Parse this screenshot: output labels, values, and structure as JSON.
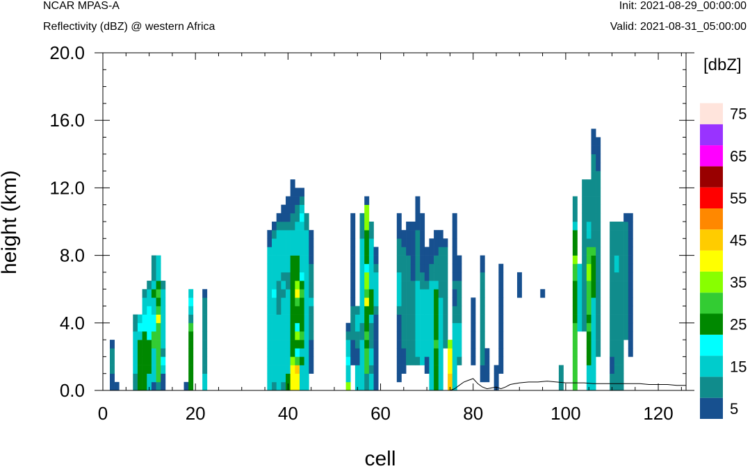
{
  "header": {
    "left_title": "NCAR MPAS-A",
    "left_subtitle": "Reflectivity (dBZ) @ western Africa",
    "init": "Init: 2021-08-29_00:00:00",
    "valid": "Valid: 2021-08-31_05:00:00"
  },
  "chart_data": {
    "type": "heatmap",
    "xlabel": "cell",
    "ylabel": "height (km)",
    "xlim": [
      0,
      126
    ],
    "ylim": [
      0,
      20
    ],
    "xticks": [
      "0",
      "20",
      "40",
      "60",
      "80",
      "100",
      "120"
    ],
    "yticks": [
      "0.0",
      "4.0",
      "8.0",
      "12.0",
      "16.0",
      "20.0"
    ],
    "colorbar": {
      "units": "[dbZ]",
      "levels": [
        5,
        10,
        15,
        20,
        25,
        30,
        35,
        40,
        45,
        50,
        55,
        60,
        65,
        70,
        75
      ],
      "labels": [
        "5",
        "15",
        "25",
        "35",
        "45",
        "55",
        "65",
        "75"
      ],
      "colors": [
        "#17508f",
        "#108c8c",
        "#00cccc",
        "#00ffff",
        "#008800",
        "#33cc33",
        "#88ff00",
        "#ffff00",
        "#ffcc00",
        "#ff8800",
        "#ff0000",
        "#990000",
        "#ff00ff",
        "#9933ff",
        "#ffe4dc"
      ]
    },
    "cell_height_km": 0.5,
    "columns": [
      {
        "x": 2,
        "y0": 0,
        "classes": [
          0,
          0,
          1,
          1,
          1,
          0
        ]
      },
      {
        "x": 3,
        "y0": 0,
        "classes": [
          0
        ]
      },
      {
        "x": 7,
        "y0": 0,
        "classes": [
          1,
          1,
          2,
          2,
          2,
          2,
          2,
          1,
          1
        ]
      },
      {
        "x": 8,
        "y0": 0,
        "classes": [
          4,
          4,
          4,
          4,
          4,
          4,
          2,
          3,
          2
        ]
      },
      {
        "x": 9,
        "y0": 0,
        "classes": [
          4,
          4,
          4,
          4,
          4,
          4,
          4,
          3,
          3,
          2,
          2,
          1
        ]
      },
      {
        "x": 10,
        "y0": 0,
        "classes": [
          2,
          2,
          4,
          4,
          4,
          4,
          3,
          3,
          3,
          3,
          2,
          2,
          1
        ]
      },
      {
        "x": 11,
        "y0": 0,
        "classes": [
          0,
          2,
          2,
          2,
          2,
          5,
          5,
          3,
          3,
          2,
          2,
          4,
          2,
          1,
          1,
          1
        ]
      },
      {
        "x": 12,
        "y0": 0,
        "classes": [
          1,
          5,
          5,
          5,
          5,
          5,
          5,
          5,
          7,
          5,
          4,
          5,
          4,
          2,
          2,
          2
        ]
      },
      {
        "x": 13,
        "y0": 0,
        "classes": [
          0,
          0,
          2,
          3,
          1,
          2,
          2,
          2,
          2,
          2,
          2,
          2,
          1
        ]
      },
      {
        "x": 18,
        "y0": 0,
        "classes": [
          0
        ]
      },
      {
        "x": 19,
        "y0": 0,
        "classes": [
          4,
          4,
          4,
          4,
          4,
          4,
          4,
          5,
          1,
          2,
          3,
          2
        ]
      },
      {
        "x": 22,
        "y0": 0,
        "classes": [
          2,
          2,
          1,
          1,
          1,
          1,
          1,
          1,
          1,
          1,
          1,
          0
        ]
      },
      {
        "x": 36,
        "y0": 0,
        "classes": [
          2,
          2,
          2,
          2,
          2,
          2,
          2,
          2,
          2,
          2,
          2,
          2,
          2,
          2,
          2,
          2,
          2,
          0,
          0
        ]
      },
      {
        "x": 37,
        "y0": 0,
        "classes": [
          1,
          2,
          2,
          2,
          2,
          2,
          2,
          2,
          2,
          2,
          2,
          3,
          2,
          2,
          2,
          2,
          2,
          2,
          1,
          0
        ]
      },
      {
        "x": 38,
        "y0": 0,
        "classes": [
          2,
          2,
          2,
          2,
          2,
          2,
          2,
          2,
          2,
          1,
          1,
          1,
          1,
          2,
          2,
          2,
          2,
          2,
          2,
          1,
          0
        ]
      },
      {
        "x": 39,
        "y0": 0,
        "classes": [
          1,
          2,
          2,
          2,
          2,
          2,
          2,
          2,
          2,
          2,
          2,
          1,
          2,
          1,
          2,
          2,
          2,
          2,
          2,
          1,
          0,
          0
        ]
      },
      {
        "x": 40,
        "y0": 0,
        "classes": [
          4,
          4,
          2,
          2,
          2,
          2,
          2,
          2,
          2,
          2,
          2,
          2,
          1,
          1,
          2,
          2,
          2,
          2,
          2,
          1,
          0,
          0,
          0
        ]
      },
      {
        "x": 41,
        "y0": 0,
        "classes": [
          7,
          7,
          7,
          6,
          4,
          4,
          4,
          4,
          4,
          4,
          4,
          4,
          4,
          4,
          4,
          4,
          2,
          2,
          2,
          1,
          1,
          0,
          0,
          0,
          0
        ]
      },
      {
        "x": 42,
        "y0": 0,
        "classes": [
          7,
          7,
          8,
          5,
          3,
          4,
          6,
          3,
          4,
          4,
          5,
          7,
          6,
          4,
          4,
          4,
          2,
          2,
          2,
          2,
          1,
          1,
          0,
          0
        ]
      },
      {
        "x": 43,
        "y0": 0,
        "classes": [
          2,
          2,
          2,
          4,
          2,
          4,
          5,
          4,
          4,
          4,
          4,
          5,
          4,
          3,
          2,
          2,
          2,
          2,
          2,
          2,
          3,
          2,
          1,
          0
        ]
      },
      {
        "x": 44,
        "y0": 0,
        "classes": [
          2,
          2,
          2,
          2,
          2,
          2,
          2,
          2,
          2,
          2,
          2,
          2,
          2,
          2,
          2,
          2,
          2,
          2,
          2,
          1,
          1
        ]
      },
      {
        "x": 45,
        "y0": 2,
        "classes": [
          0,
          0,
          0,
          0,
          1,
          1,
          1,
          1,
          2,
          1,
          1,
          1,
          1,
          0,
          0,
          0,
          0
        ]
      },
      {
        "x": 53,
        "y0": 0,
        "classes": [
          6,
          2,
          2,
          3,
          2,
          2,
          1,
          0
        ]
      },
      {
        "x": 54,
        "y0": 3,
        "classes": [
          0,
          0,
          0,
          1,
          1,
          1,
          1,
          0,
          0,
          0,
          0,
          0,
          0,
          0,
          0,
          0,
          0,
          0
        ]
      },
      {
        "x": 55,
        "y0": 0,
        "classes": [
          2,
          2,
          2,
          0,
          0,
          1,
          1,
          2,
          2,
          1
        ]
      },
      {
        "x": 56,
        "y0": 0,
        "classes": [
          2,
          2,
          2,
          2,
          2,
          2,
          1,
          1,
          2,
          2,
          2,
          2,
          2,
          2,
          2,
          2,
          2,
          2,
          1,
          1,
          1
        ]
      },
      {
        "x": 57,
        "y0": 0,
        "classes": [
          1,
          1,
          5,
          5,
          5,
          4,
          5,
          4,
          4,
          4,
          7,
          5,
          6,
          6,
          3,
          4,
          4,
          4,
          4,
          6,
          6,
          6,
          0
        ]
      },
      {
        "x": 58,
        "y0": 0,
        "classes": [
          2,
          2,
          1,
          2,
          2,
          1,
          1,
          1,
          2,
          4,
          4,
          4,
          2,
          2,
          2,
          2,
          2,
          2,
          1,
          1
        ]
      },
      {
        "x": 59,
        "y0": 0,
        "classes": [
          0,
          0,
          0,
          0,
          0,
          0,
          0,
          0,
          0,
          1,
          2,
          2,
          2,
          2,
          1,
          0,
          0
        ]
      },
      {
        "x": 64,
        "y0": 1,
        "classes": [
          0,
          0,
          0,
          0,
          0,
          0,
          0,
          0,
          1,
          2,
          2,
          2,
          2,
          1,
          1,
          1,
          1,
          0,
          0,
          0
        ]
      },
      {
        "x": 65,
        "y0": 2,
        "classes": [
          0,
          0,
          0,
          1,
          1,
          1,
          1,
          1,
          1,
          1,
          1,
          1,
          1,
          1,
          1,
          0,
          0
        ]
      },
      {
        "x": 66,
        "y0": 3,
        "classes": [
          1,
          1,
          1,
          1,
          1,
          1,
          1,
          1,
          1,
          1,
          1,
          1,
          1,
          0,
          0,
          0,
          0
        ]
      },
      {
        "x": 67,
        "y0": 3,
        "classes": [
          1,
          1,
          1,
          1,
          1,
          1,
          1,
          1,
          1,
          1,
          0,
          0,
          0,
          0,
          0,
          0,
          0
        ]
      },
      {
        "x": 68,
        "y0": 3,
        "classes": [
          1,
          2,
          2,
          2,
          2,
          2,
          2,
          2,
          2,
          2,
          1,
          1,
          1,
          1,
          1,
          1,
          0,
          0,
          0,
          0
        ]
      },
      {
        "x": 69,
        "y0": 3,
        "classes": [
          2,
          2,
          2,
          2,
          2,
          2,
          2,
          2,
          2,
          1,
          1,
          0,
          0,
          0,
          0,
          0,
          0,
          0
        ]
      },
      {
        "x": 70,
        "y0": 2,
        "classes": [
          0,
          0,
          2,
          2,
          2,
          2,
          2,
          2,
          2,
          2,
          1,
          0,
          0,
          0,
          0
        ]
      },
      {
        "x": 71,
        "y0": 0,
        "classes": [
          2,
          2,
          2,
          2,
          2,
          2,
          2,
          2,
          2,
          2,
          2,
          2,
          2,
          1,
          1,
          0,
          0,
          0
        ]
      },
      {
        "x": 72,
        "y0": 0,
        "classes": [
          4,
          4,
          4,
          4,
          4,
          5,
          4,
          4,
          4,
          4,
          4,
          4,
          2,
          1,
          1,
          1,
          0,
          0,
          0
        ]
      },
      {
        "x": 73,
        "y0": 0,
        "classes": [
          2,
          2,
          2,
          2,
          2,
          2,
          2,
          2,
          2,
          2,
          2,
          1,
          1,
          1,
          1,
          1,
          1,
          0,
          0
        ]
      },
      {
        "x": 74,
        "y0": 5,
        "classes": [
          1,
          1,
          1,
          1,
          1,
          1,
          1,
          1,
          1,
          1,
          1,
          1,
          0
        ]
      },
      {
        "x": 75,
        "y0": 0,
        "classes": [
          8,
          8,
          7,
          7,
          7,
          6
        ]
      },
      {
        "x": 76,
        "y0": 0,
        "classes": [
          2,
          2,
          2,
          2,
          2,
          2,
          2,
          2,
          1,
          1,
          0,
          0,
          1,
          0,
          0,
          0,
          0,
          0,
          0,
          0,
          0
        ]
      },
      {
        "x": 77,
        "y0": 3,
        "classes": [
          1,
          2,
          2,
          2,
          2,
          1,
          1,
          1,
          1,
          1,
          0,
          0,
          0
        ]
      },
      {
        "x": 80,
        "y0": 3,
        "classes": [
          0,
          0,
          0,
          0,
          0,
          0,
          0,
          0
        ]
      },
      {
        "x": 82,
        "y0": 1,
        "classes": [
          0,
          0,
          1,
          1,
          1,
          1,
          1,
          1,
          1,
          1,
          1,
          1,
          1,
          0,
          0
        ]
      },
      {
        "x": 83,
        "y0": 1,
        "classes": [
          0,
          0,
          0,
          0
        ]
      },
      {
        "x": 85,
        "y0": 0,
        "classes": [
          0,
          0,
          0
        ]
      },
      {
        "x": 86,
        "y0": 2,
        "classes": [
          0,
          0,
          0,
          0,
          0,
          0,
          0,
          0,
          0,
          0,
          0,
          0,
          0
        ]
      },
      {
        "x": 90,
        "y0": 11,
        "classes": [
          0,
          0,
          0
        ]
      },
      {
        "x": 95,
        "y0": 11,
        "classes": [
          0
        ]
      },
      {
        "x": 99,
        "y0": 0,
        "classes": [
          1,
          1,
          1
        ]
      },
      {
        "x": 102,
        "y0": 0,
        "classes": [
          5,
          5,
          5,
          5,
          5,
          5,
          5,
          5,
          4,
          4,
          4,
          4,
          4,
          5,
          5,
          6,
          4,
          4,
          4,
          2,
          1,
          1,
          1
        ]
      },
      {
        "x": 103,
        "y0": 7,
        "classes": [
          2,
          2,
          2,
          2,
          2,
          2,
          2,
          2
        ]
      },
      {
        "x": 104,
        "y0": 7,
        "classes": [
          1,
          1,
          1,
          1,
          1,
          1,
          1,
          1,
          1,
          1,
          1,
          1,
          1,
          1,
          1,
          1,
          1,
          1
        ]
      },
      {
        "x": 105,
        "y0": 0,
        "classes": [
          2,
          2,
          2,
          4,
          4,
          4,
          4,
          5,
          4,
          5,
          5,
          5,
          5,
          6,
          6,
          5,
          5,
          1,
          2,
          2,
          1,
          1,
          1,
          1,
          1
        ]
      },
      {
        "x": 106,
        "y0": 0,
        "classes": [
          2,
          2,
          2,
          2,
          2,
          2,
          2,
          2,
          2,
          2,
          2,
          4,
          4,
          4,
          4,
          4,
          5,
          1,
          1,
          1,
          1,
          1,
          1,
          1,
          1,
          1,
          1,
          1,
          0,
          0,
          0
        ]
      },
      {
        "x": 107,
        "y0": 4,
        "classes": [
          1,
          1,
          1,
          1,
          1,
          1,
          1,
          1,
          1,
          1,
          1,
          1,
          1,
          1,
          1,
          1,
          1,
          1,
          1,
          1,
          1,
          1,
          0,
          0,
          0,
          0
        ]
      },
      {
        "x": 110,
        "y0": 0,
        "classes": [
          1,
          1,
          0,
          0,
          1,
          1,
          1,
          1,
          1,
          1,
          1,
          1,
          1,
          1,
          1,
          1,
          1,
          1,
          1,
          1
        ]
      },
      {
        "x": 111,
        "y0": 0,
        "classes": [
          1,
          1,
          1,
          1,
          1,
          1,
          1,
          1,
          1,
          1,
          1,
          1,
          1,
          1,
          2,
          2,
          1,
          1,
          1,
          1
        ]
      },
      {
        "x": 112,
        "y0": 0,
        "classes": [
          1,
          1,
          1,
          1,
          1,
          1,
          1,
          1,
          1,
          1,
          1,
          1,
          1,
          1,
          1,
          1,
          1,
          1,
          1,
          1
        ]
      },
      {
        "x": 113,
        "y0": 6,
        "classes": [
          1,
          1,
          1,
          1,
          1,
          1,
          1,
          1,
          1,
          1,
          1,
          1,
          1,
          1,
          0
        ]
      },
      {
        "x": 114,
        "y0": 4,
        "classes": [
          0,
          0,
          0,
          0,
          0,
          0,
          0,
          0,
          0,
          0,
          0,
          0,
          0,
          0,
          0,
          0,
          0
        ]
      }
    ],
    "terrain": {
      "x": [
        0,
        75,
        76,
        77,
        78,
        79,
        80,
        81,
        82,
        83,
        84,
        85,
        86,
        87,
        88,
        89,
        90,
        92,
        94,
        96,
        98,
        100,
        102,
        104,
        106,
        108,
        110,
        112,
        114,
        116,
        118,
        120,
        122,
        124,
        126
      ],
      "y": [
        0,
        0,
        0.1,
        0.3,
        0.5,
        0.6,
        0.7,
        0.4,
        0.2,
        0.1,
        0.15,
        0.2,
        0.1,
        0.2,
        0.35,
        0.4,
        0.45,
        0.5,
        0.5,
        0.55,
        0.5,
        0.45,
        0.45,
        0.45,
        0.4,
        0.4,
        0.4,
        0.4,
        0.4,
        0.4,
        0.35,
        0.35,
        0.35,
        0.3,
        0.3
      ]
    }
  }
}
